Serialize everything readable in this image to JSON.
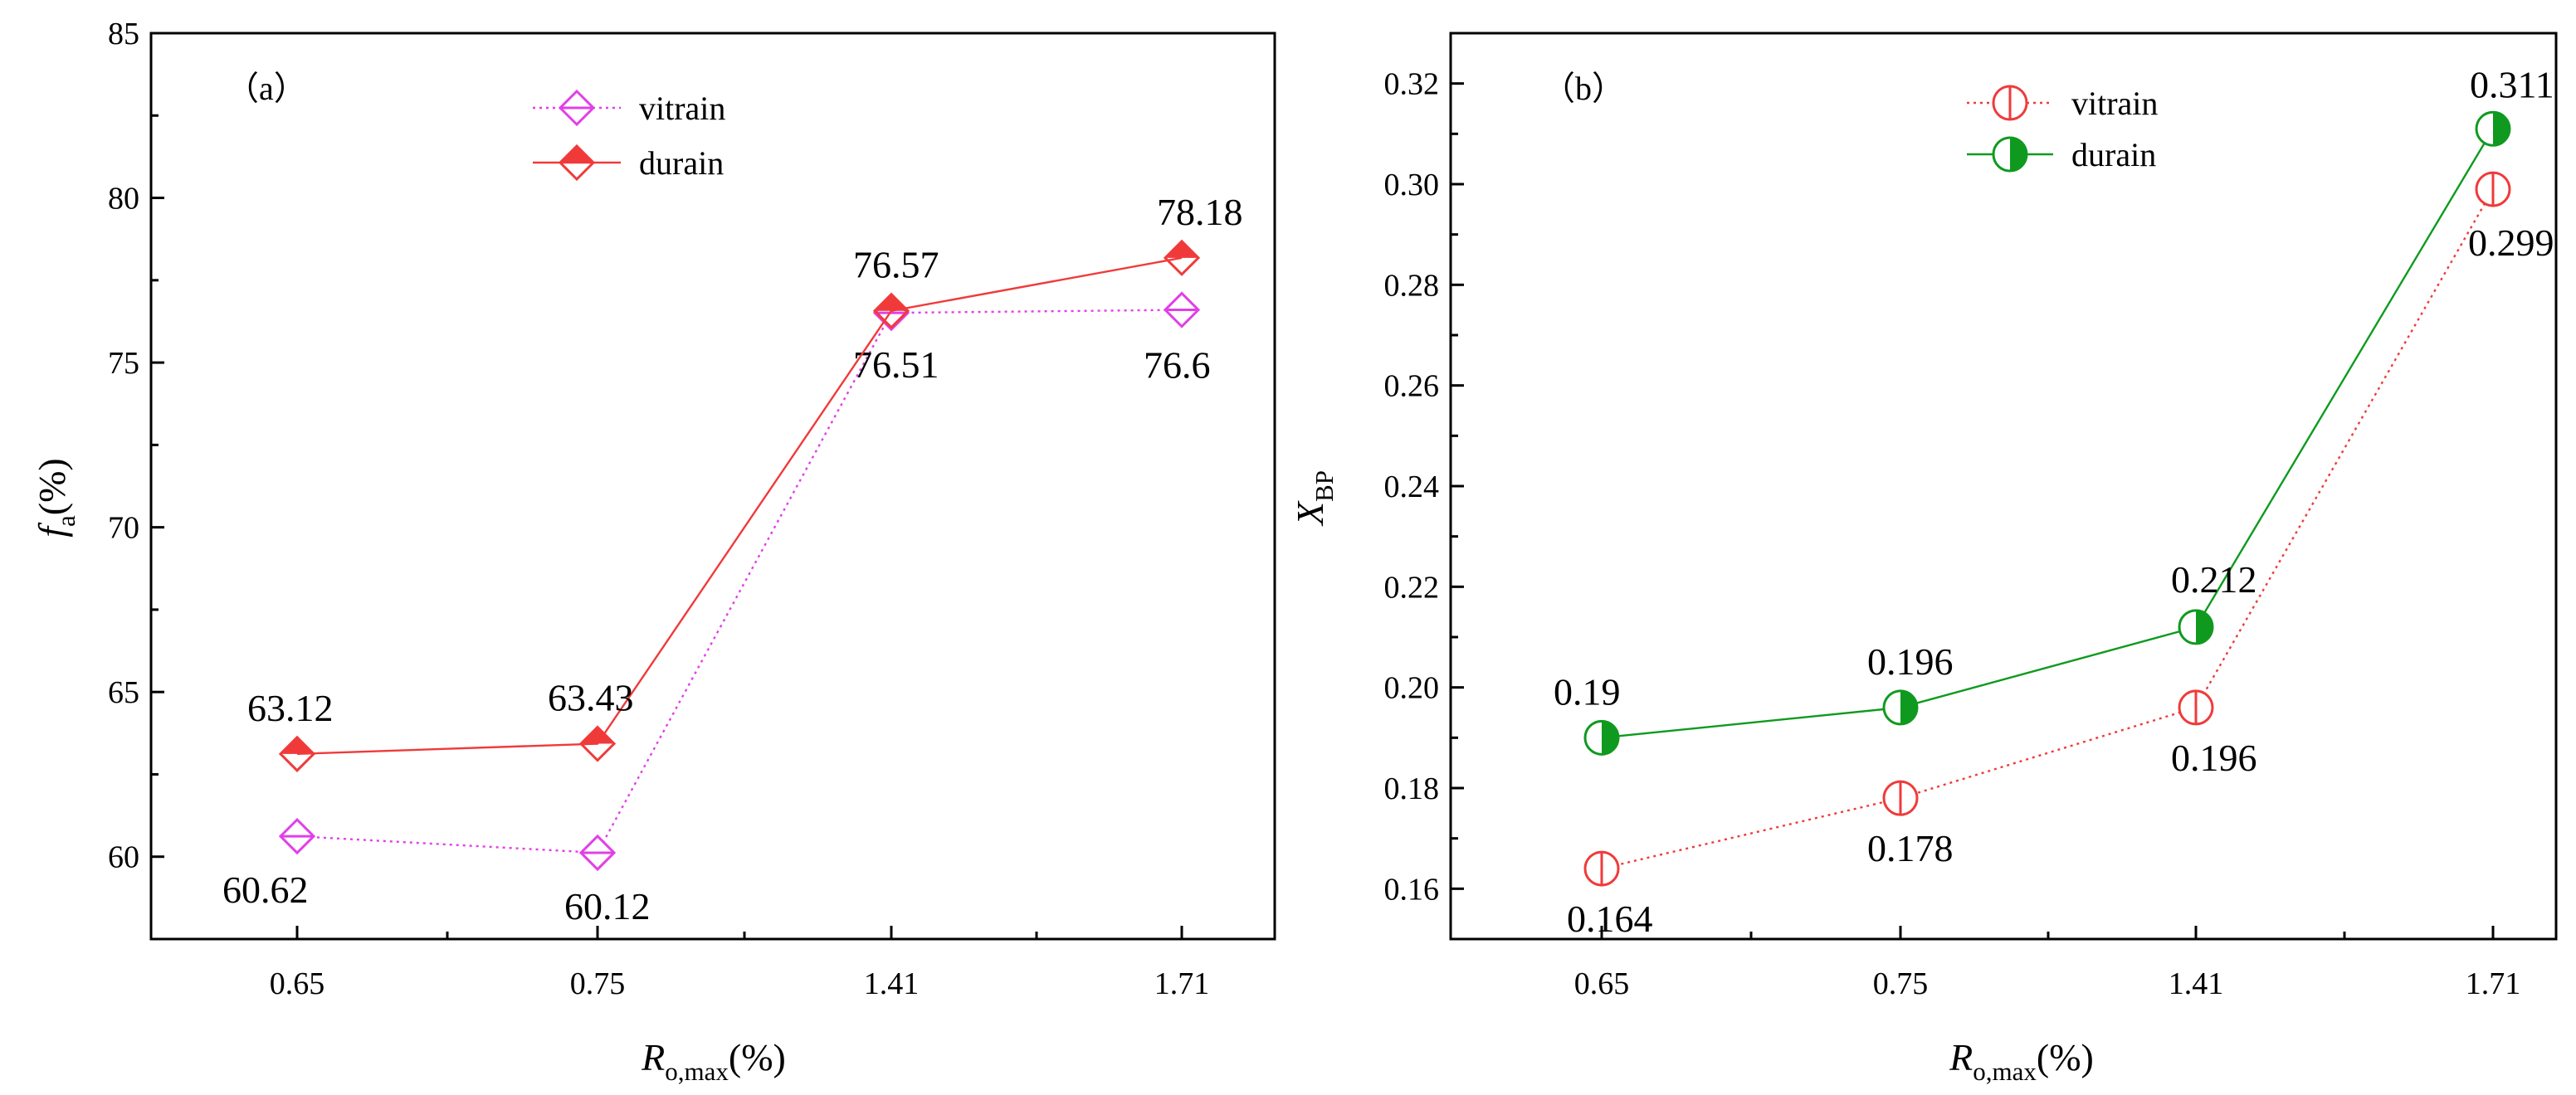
{
  "chart_data": [
    {
      "type": "line",
      "panel_tag": "（a）",
      "categories": [
        "0.65",
        "0.75",
        "1.41",
        "1.71"
      ],
      "xlabel": {
        "main": "R",
        "sub": "o,max",
        "suffix": "(%)"
      },
      "ylabel": {
        "main": "f",
        "sub": "a",
        "suffix": "(%)"
      },
      "ylim": [
        57.5,
        85
      ],
      "yticks": [
        60,
        65,
        70,
        75,
        80,
        85
      ],
      "ytick_labels": [
        "60",
        "65",
        "70",
        "75",
        "80",
        "85"
      ],
      "grid": false,
      "legend_position": "top-center",
      "series": [
        {
          "name": "vitrain",
          "color": "#e23fe8",
          "marker": "diamond-half-line",
          "line_style": "dotted",
          "values": [
            60.62,
            60.12,
            76.51,
            76.6
          ],
          "labels": [
            "60.62",
            "60.12",
            "76.51",
            "76.6"
          ]
        },
        {
          "name": "durain",
          "color": "#f03a3a",
          "marker": "diamond-half-filled",
          "line_style": "solid",
          "values": [
            63.12,
            63.43,
            76.57,
            78.18
          ],
          "labels": [
            "63.12",
            "63.43",
            "76.57",
            "78.18"
          ]
        }
      ]
    },
    {
      "type": "line",
      "panel_tag": "（b）",
      "categories": [
        "0.65",
        "0.75",
        "1.41",
        "1.71"
      ],
      "xlabel": {
        "main": "R",
        "sub": "o,max",
        "suffix": "(%)"
      },
      "ylabel": {
        "main": "X",
        "sub": "BP",
        "suffix": ""
      },
      "ylim": [
        0.15,
        0.33
      ],
      "yticks": [
        0.16,
        0.18,
        0.2,
        0.22,
        0.24,
        0.26,
        0.28,
        0.3,
        0.32
      ],
      "ytick_labels": [
        "0.16",
        "0.18",
        "0.20",
        "0.22",
        "0.24",
        "0.26",
        "0.28",
        "0.30",
        "0.32"
      ],
      "grid": false,
      "legend_position": "top-center",
      "series": [
        {
          "name": "vitrain",
          "color": "#f03a3a",
          "marker": "circle-vertical-line",
          "line_style": "dotted",
          "values": [
            0.164,
            0.178,
            0.196,
            0.299
          ],
          "labels": [
            "0.164",
            "0.178",
            "0.196",
            "0.299"
          ]
        },
        {
          "name": "durain",
          "color": "#0f9a1f",
          "marker": "circle-half-filled",
          "line_style": "solid",
          "values": [
            0.19,
            0.196,
            0.212,
            0.311
          ],
          "labels": [
            "0.19",
            "0.196",
            "0.212",
            "0.311"
          ]
        }
      ]
    }
  ]
}
